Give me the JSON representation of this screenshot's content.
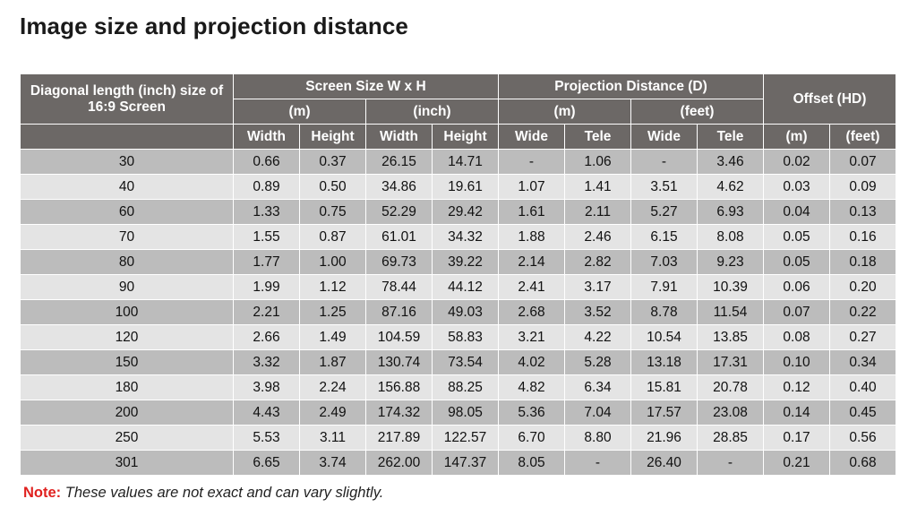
{
  "title": "Image size and projection distance",
  "header": {
    "diagonal": "Diagonal length (inch) size of 16:9 Screen",
    "screen_size": "Screen Size W x H",
    "projection_distance": "Projection Distance (D)",
    "offset": "Offset (HD)",
    "unit_m": "(m)",
    "unit_inch": "(inch)",
    "unit_feet": "(feet)",
    "width": "Width",
    "height": "Height",
    "wide": "Wide",
    "tele": "Tele"
  },
  "rows": [
    [
      "30",
      "0.66",
      "0.37",
      "26.15",
      "14.71",
      "-",
      "1.06",
      "-",
      "3.46",
      "0.02",
      "0.07"
    ],
    [
      "40",
      "0.89",
      "0.50",
      "34.86",
      "19.61",
      "1.07",
      "1.41",
      "3.51",
      "4.62",
      "0.03",
      "0.09"
    ],
    [
      "60",
      "1.33",
      "0.75",
      "52.29",
      "29.42",
      "1.61",
      "2.11",
      "5.27",
      "6.93",
      "0.04",
      "0.13"
    ],
    [
      "70",
      "1.55",
      "0.87",
      "61.01",
      "34.32",
      "1.88",
      "2.46",
      "6.15",
      "8.08",
      "0.05",
      "0.16"
    ],
    [
      "80",
      "1.77",
      "1.00",
      "69.73",
      "39.22",
      "2.14",
      "2.82",
      "7.03",
      "9.23",
      "0.05",
      "0.18"
    ],
    [
      "90",
      "1.99",
      "1.12",
      "78.44",
      "44.12",
      "2.41",
      "3.17",
      "7.91",
      "10.39",
      "0.06",
      "0.20"
    ],
    [
      "100",
      "2.21",
      "1.25",
      "87.16",
      "49.03",
      "2.68",
      "3.52",
      "8.78",
      "11.54",
      "0.07",
      "0.22"
    ],
    [
      "120",
      "2.66",
      "1.49",
      "104.59",
      "58.83",
      "3.21",
      "4.22",
      "10.54",
      "13.85",
      "0.08",
      "0.27"
    ],
    [
      "150",
      "3.32",
      "1.87",
      "130.74",
      "73.54",
      "4.02",
      "5.28",
      "13.18",
      "17.31",
      "0.10",
      "0.34"
    ],
    [
      "180",
      "3.98",
      "2.24",
      "156.88",
      "88.25",
      "4.82",
      "6.34",
      "15.81",
      "20.78",
      "0.12",
      "0.40"
    ],
    [
      "200",
      "4.43",
      "2.49",
      "174.32",
      "98.05",
      "5.36",
      "7.04",
      "17.57",
      "23.08",
      "0.14",
      "0.45"
    ],
    [
      "250",
      "5.53",
      "3.11",
      "217.89",
      "122.57",
      "6.70",
      "8.80",
      "21.96",
      "28.85",
      "0.17",
      "0.56"
    ],
    [
      "301",
      "6.65",
      "3.74",
      "262.00",
      "147.37",
      "8.05",
      "-",
      "26.40",
      "-",
      "0.21",
      "0.68"
    ]
  ],
  "note": {
    "label": "Note:",
    "text": "These values are not exact and can vary slightly."
  },
  "colors": {
    "header_bg": "#6c6866",
    "row_dark": "#bcbcbc",
    "row_light": "#e4e4e4",
    "note_label": "#e0211f"
  }
}
